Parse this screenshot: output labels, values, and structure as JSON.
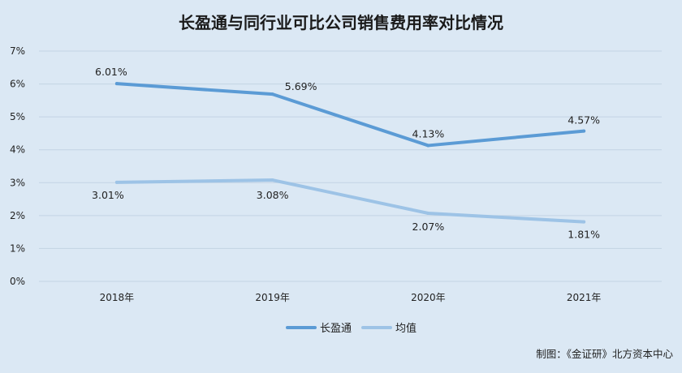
{
  "chart_data": {
    "type": "line",
    "title": "长盈通与同行业可比公司销售费用率对比情况",
    "categories": [
      "2018年",
      "2019年",
      "2020年",
      "2021年"
    ],
    "y_ticks": [
      "0%",
      "1%",
      "2%",
      "3%",
      "4%",
      "5%",
      "6%",
      "7%"
    ],
    "ylim": [
      0,
      7
    ],
    "grid": true,
    "legend_position": "bottom",
    "series": [
      {
        "name": "长盈通",
        "values": [
          6.01,
          5.69,
          4.13,
          4.57
        ],
        "labels": [
          "6.01%",
          "5.69%",
          "4.13%",
          "4.57%"
        ],
        "color": "#5b9bd5"
      },
      {
        "name": "均值",
        "values": [
          3.01,
          3.08,
          2.07,
          1.81
        ],
        "labels": [
          "3.01%",
          "3.08%",
          "2.07%",
          "1.81%"
        ],
        "color": "#9dc3e6"
      }
    ]
  },
  "source_note": "制图：《金证研》北方资本中心"
}
